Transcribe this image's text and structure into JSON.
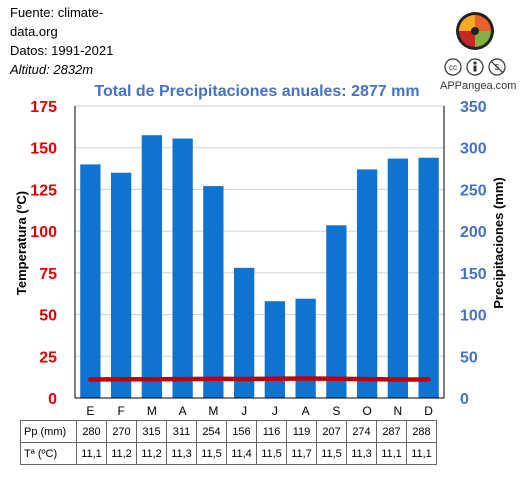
{
  "source": {
    "line1": "Fuente: climate-",
    "line2": "data.org",
    "line3": "Datos: 1991-2021",
    "line4": "Altitud: 2832m"
  },
  "logo": {
    "icon": "puzzle-globe-icon",
    "license_icons": [
      "cc-icon",
      "by-icon",
      "nc-icon"
    ],
    "caption": "APPangea.com"
  },
  "chart_data": {
    "type": "bar",
    "title": "Total de Precipitaciones anuales: 2877 mm",
    "categories": [
      "E",
      "F",
      "M",
      "A",
      "M",
      "J",
      "J",
      "A",
      "S",
      "O",
      "N",
      "D"
    ],
    "series": [
      {
        "name": "Pp (mm)",
        "type": "bar",
        "axis": "right",
        "color": "#0f73d0",
        "values": [
          280,
          270,
          315,
          311,
          254,
          156,
          116,
          119,
          207,
          274,
          287,
          288
        ]
      },
      {
        "name": "Tª (ºC)",
        "type": "line",
        "axis": "left",
        "color": "#c00000",
        "values": [
          11.1,
          11.2,
          11.2,
          11.3,
          11.5,
          11.4,
          11.5,
          11.7,
          11.5,
          11.3,
          11.1,
          11.1
        ]
      }
    ],
    "ylabel_left": "Temperatura (ºC)",
    "ylim_left": [
      0,
      175
    ],
    "yticks_left": [
      "0",
      "25",
      "50",
      "75",
      "100",
      "125",
      "150",
      "175"
    ],
    "ylabel_right": "Precipitaciones (mm)",
    "ylim_right": [
      0,
      350
    ],
    "yticks_right": [
      "0",
      "50",
      "100",
      "150",
      "200",
      "250",
      "300",
      "350"
    ],
    "grid": true,
    "colors": {
      "left_axis": "#e00000",
      "right_axis": "#4472c4",
      "title": "#4472c4"
    }
  },
  "table": {
    "rows": [
      {
        "label": "Pp (mm)",
        "values": [
          "280",
          "270",
          "315",
          "311",
          "254",
          "156",
          "116",
          "119",
          "207",
          "274",
          "287",
          "288"
        ]
      },
      {
        "label": "Tª (ºC)",
        "values": [
          "11,1",
          "11,2",
          "11,2",
          "11,3",
          "11,5",
          "11,4",
          "11,5",
          "11,7",
          "11,5",
          "11,3",
          "11,1",
          "11,1"
        ]
      }
    ]
  }
}
